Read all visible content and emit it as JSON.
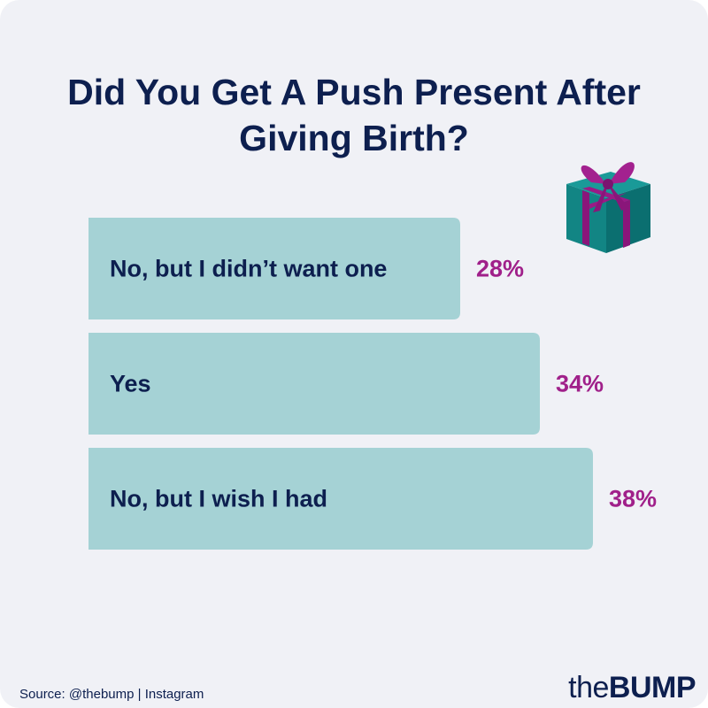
{
  "chart_data": {
    "type": "bar",
    "orientation": "horizontal",
    "title": "Did You Get A Push Present After Giving Birth?",
    "categories": [
      "No, but I didn’t want one",
      "Yes",
      "No, but I wish I had"
    ],
    "values": [
      28,
      34,
      38
    ],
    "value_labels": [
      "28%",
      "34%",
      "38%"
    ],
    "color": "#a5d2d5",
    "label_color": "#a0208a",
    "source": "Source: @thebump | Instagram",
    "logo": {
      "prefix": "the",
      "name": "BUMP"
    }
  }
}
